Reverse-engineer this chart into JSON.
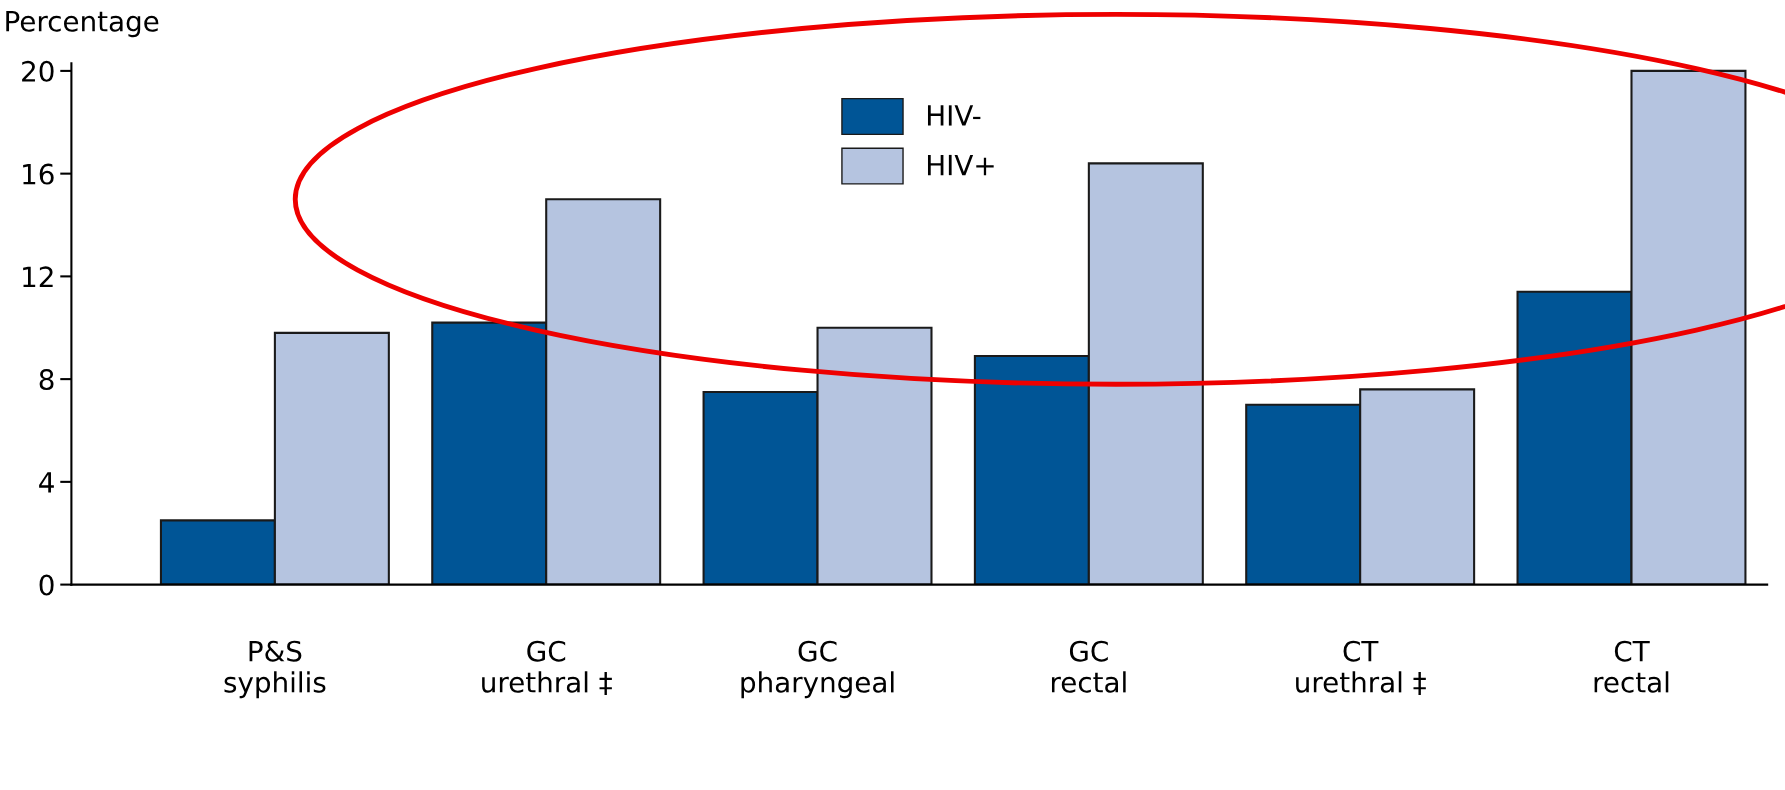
{
  "chart_data": {
    "type": "bar",
    "ylabel": "Percentage",
    "categories": [
      "P&S\nsyphilis",
      "GC\nurethral ‡",
      "GC\npharyngeal",
      "GC\nrectal",
      "CT\nurethral ‡",
      "CT\nrectal"
    ],
    "series": [
      {
        "name": "HIV-",
        "color": "#005596",
        "values": [
          2.5,
          10.2,
          7.5,
          8.9,
          7.0,
          11.4
        ]
      },
      {
        "name": "HIV+",
        "color": "#b5c4e0",
        "values": [
          9.8,
          15.0,
          10.0,
          16.4,
          7.6,
          20.0
        ]
      }
    ],
    "ylim": [
      0,
      20.3
    ],
    "yticks": [
      0,
      4,
      8,
      12,
      16,
      20
    ],
    "grid": false,
    "legend": "top"
  }
}
